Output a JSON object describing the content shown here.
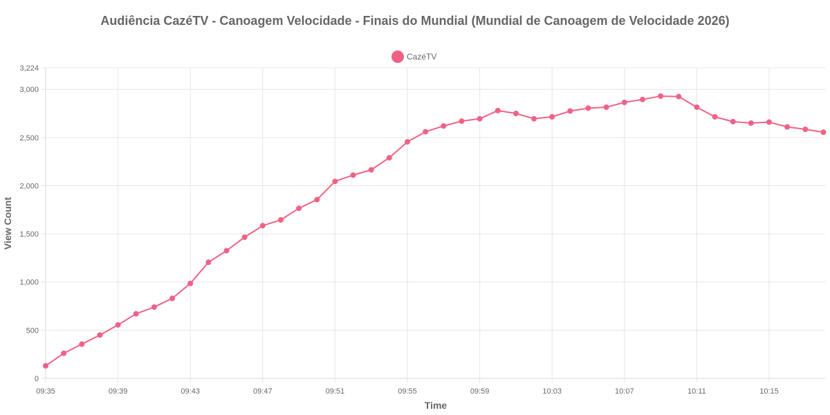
{
  "chart_data": {
    "type": "line",
    "title": "Audiência CazéTV - Canoagem Velocidade - Finais do Mundial (Mundial de Canoagem de Velocidade 2026)",
    "xlabel": "Time",
    "ylabel": "View Count",
    "ylim": [
      0,
      3224
    ],
    "y_ticks": [
      "0",
      "500",
      "1,000",
      "1,500",
      "2,000",
      "2,500",
      "3,000",
      "3,224"
    ],
    "x_tick_labels": [
      "09:35",
      "09:39",
      "09:43",
      "09:47",
      "09:51",
      "09:55",
      "09:59",
      "10:03",
      "10:07",
      "10:11",
      "10:15"
    ],
    "grid": true,
    "legend_position": "top-center",
    "x": [
      "09:35",
      "09:36",
      "09:37",
      "09:38",
      "09:39",
      "09:40",
      "09:41",
      "09:42",
      "09:43",
      "09:44",
      "09:45",
      "09:46",
      "09:47",
      "09:48",
      "09:49",
      "09:50",
      "09:51",
      "09:52",
      "09:53",
      "09:54",
      "09:55",
      "09:56",
      "09:57",
      "09:58",
      "09:59",
      "10:00",
      "10:01",
      "10:02",
      "10:03",
      "10:04",
      "10:05",
      "10:06",
      "10:07",
      "10:08",
      "10:09",
      "10:10",
      "10:11",
      "10:12",
      "10:13",
      "10:14",
      "10:15",
      "10:16",
      "10:17",
      "10:18"
    ],
    "series": [
      {
        "name": "CazéTV",
        "color": "#f06285",
        "values": [
          130,
          260,
          355,
          450,
          555,
          670,
          740,
          830,
          985,
          1205,
          1325,
          1465,
          1585,
          1645,
          1765,
          1855,
          2045,
          2110,
          2165,
          2290,
          2455,
          2560,
          2620,
          2670,
          2695,
          2780,
          2750,
          2695,
          2715,
          2775,
          2805,
          2815,
          2865,
          2895,
          2930,
          2925,
          2815,
          2715,
          2665,
          2650,
          2660,
          2610,
          2585,
          2555
        ]
      }
    ]
  }
}
